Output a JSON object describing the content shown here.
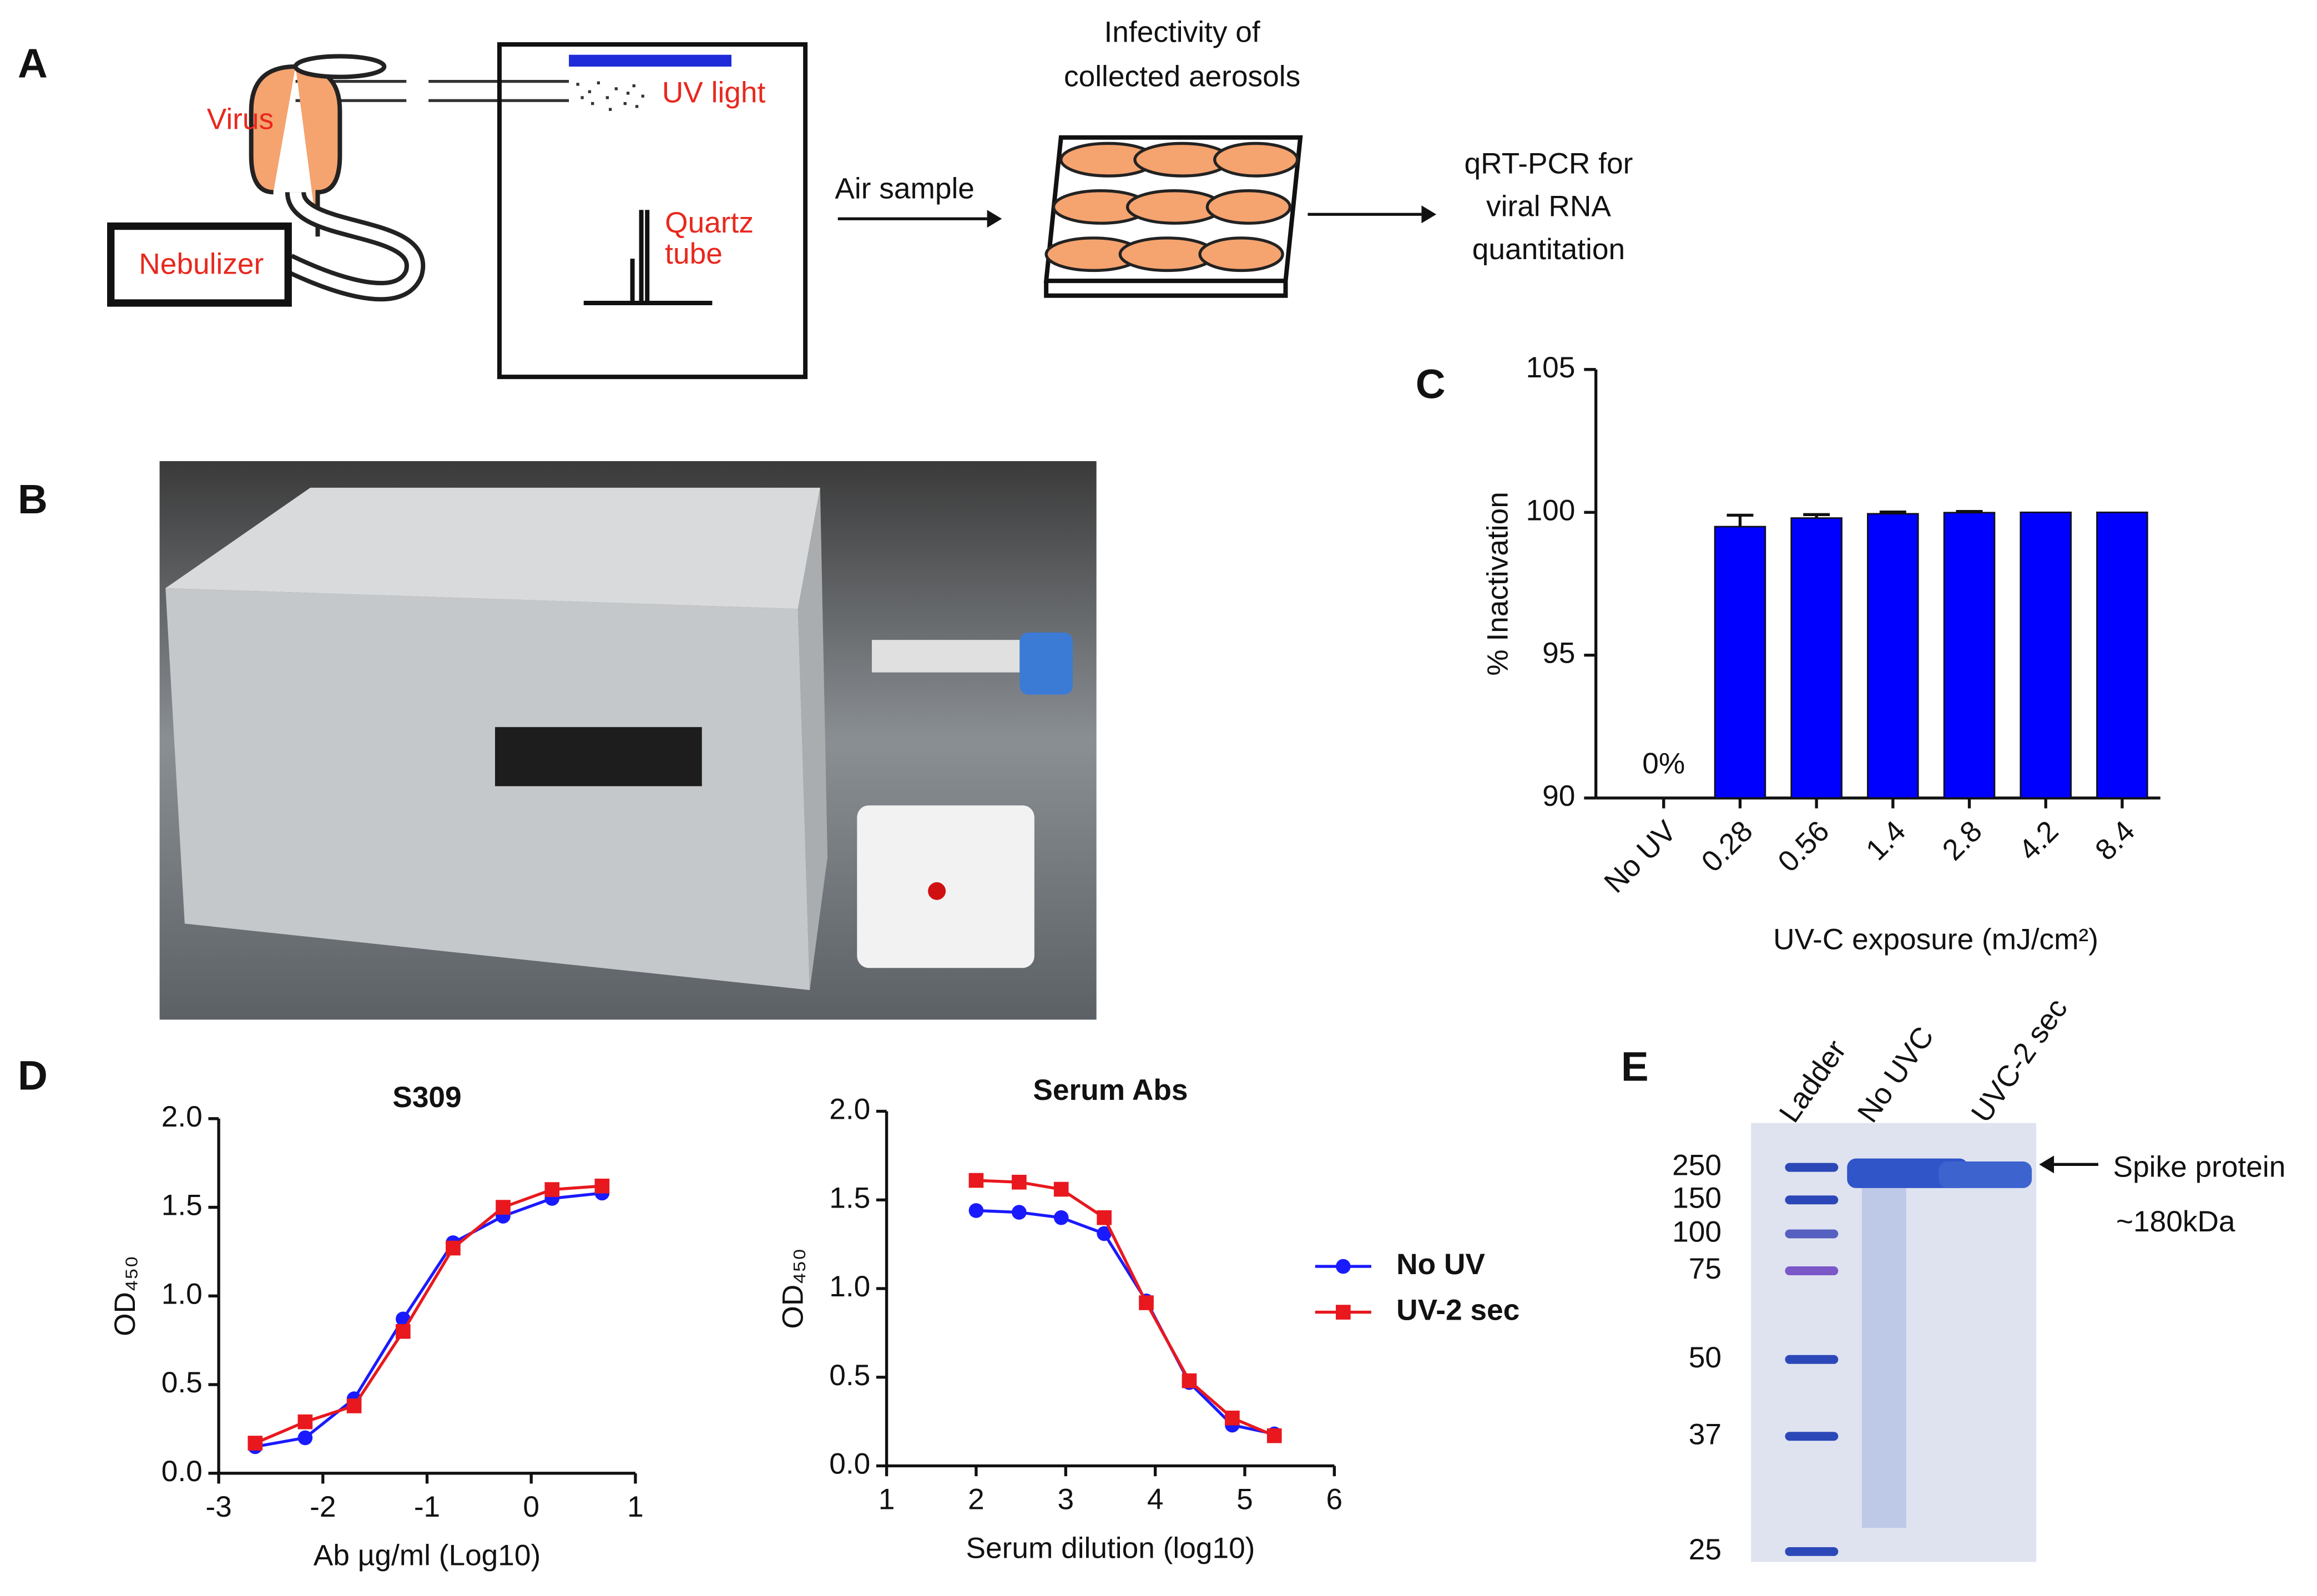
{
  "panel_labels": [
    "A",
    "B",
    "C",
    "D",
    "E"
  ],
  "diagram": {
    "virus": "Virus",
    "uv_light": "UV light",
    "nebulizer": "Nebulizer",
    "quartz_tube": [
      "Quartz",
      "tube"
    ],
    "air_sample": "Air sample",
    "infectivity": [
      "Infectivity of",
      "collected aerosols"
    ],
    "qrtpcr": [
      "qRT-PCR for",
      "viral RNA",
      "quantitation"
    ]
  },
  "gel": {
    "lanes": [
      "Ladder",
      "No UVC",
      "UVC-2 sec"
    ],
    "markers": [
      250,
      150,
      100,
      75,
      50,
      37,
      25
    ],
    "annotation": [
      "Spike protein",
      "~180kDa"
    ]
  },
  "chart_data": [
    {
      "type": "bar",
      "y_label": "% Inactivation",
      "x_label": "UV-C exposure (mJ/cm²)",
      "categories": [
        "No UV",
        "0.28",
        "0.56",
        "1.4",
        "2.8",
        "4.2",
        "8.4"
      ],
      "values": [
        0,
        99.5,
        99.8,
        99.95,
        99.99,
        100,
        100
      ],
      "errors": [
        null,
        0.4,
        0.12,
        0.06,
        0.04,
        null,
        null
      ],
      "value_labels": [
        "0%",
        null,
        null,
        null,
        null,
        null,
        null
      ],
      "color": "#0000ff",
      "ylim": [
        90,
        105
      ],
      "yticks": [
        90,
        95,
        100,
        105
      ]
    },
    {
      "type": "line",
      "title": "S309",
      "x_label": "Ab µg/ml (Log10)",
      "y_label": "OD₄₅₀",
      "x": [
        -2.65,
        -2.17,
        -1.7,
        -1.23,
        -0.75,
        -0.27,
        0.2,
        0.68
      ],
      "series": [
        {
          "color": "#1a1aff",
          "marker": "circle",
          "values": [
            0.15,
            0.2,
            0.42,
            0.87,
            1.3,
            1.45,
            1.55,
            1.58
          ]
        },
        {
          "color": "#e8181e",
          "marker": "square",
          "values": [
            0.17,
            0.29,
            0.38,
            0.8,
            1.27,
            1.5,
            1.6,
            1.62
          ]
        }
      ],
      "xlim": [
        -3,
        1
      ],
      "xticks": [
        -3,
        -2,
        -1,
        0,
        1
      ],
      "ylim": [
        0,
        2
      ],
      "yticks": [
        {
          "value": 0,
          "label": "0.0"
        },
        {
          "value": 0.5,
          "label": "0.5"
        },
        {
          "value": 1,
          "label": "1.0"
        },
        {
          "value": 1.5,
          "label": "1.5"
        },
        {
          "value": 2,
          "label": "2.0"
        }
      ]
    },
    {
      "type": "line",
      "title": "Serum Abs",
      "x_label": "Serum dilution (log10)",
      "y_label": "OD₄₅₀",
      "x": [
        2,
        2.48,
        2.95,
        3.43,
        3.9,
        4.38,
        4.86,
        5.33
      ],
      "series": [
        {
          "name": "No UV",
          "color": "#1a1aff",
          "marker": "circle",
          "values": [
            1.44,
            1.43,
            1.4,
            1.31,
            0.93,
            0.47,
            0.23,
            0.18
          ]
        },
        {
          "name": "UV-2 sec",
          "color": "#e8181e",
          "marker": "square",
          "values": [
            1.61,
            1.6,
            1.56,
            1.4,
            0.92,
            0.48,
            0.27,
            0.17
          ]
        }
      ],
      "xlim": [
        1,
        6
      ],
      "xticks": [
        1,
        2,
        3,
        4,
        5,
        6
      ],
      "ylim": [
        0,
        2
      ],
      "yticks": [
        {
          "value": 0,
          "label": "0.0"
        },
        {
          "value": 0.5,
          "label": "0.5"
        },
        {
          "value": 1,
          "label": "1.0"
        },
        {
          "value": 1.5,
          "label": "1.5"
        },
        {
          "value": 2,
          "label": "2.0"
        }
      ]
    }
  ]
}
